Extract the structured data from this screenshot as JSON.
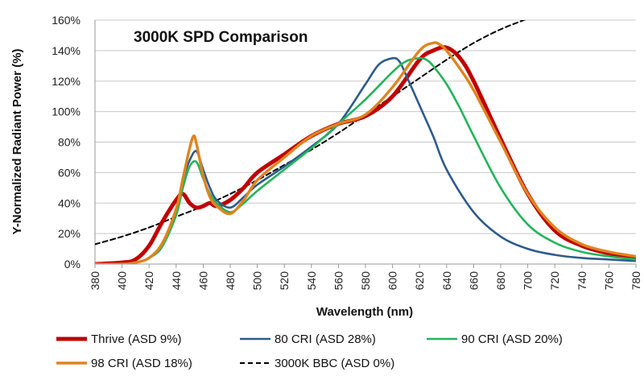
{
  "chart_data": {
    "type": "line",
    "title": "3000K SPD Comparison",
    "xlabel": "Wavelength (nm)",
    "ylabel": "Y-Normalized  Radiant  Power (%)",
    "xlim": [
      380,
      780
    ],
    "ylim": [
      0,
      160
    ],
    "x_ticks": [
      "380",
      "400",
      "420",
      "440",
      "460",
      "480",
      "500",
      "520",
      "540",
      "560",
      "580",
      "600",
      "620",
      "640",
      "660",
      "680",
      "700",
      "720",
      "740",
      "760",
      "780"
    ],
    "y_ticks": [
      "0%",
      "20%",
      "40%",
      "60%",
      "80%",
      "100%",
      "120%",
      "140%",
      "160%"
    ],
    "grid": "horizontal",
    "legend_position": "bottom",
    "colors": {
      "thrive": "#c00000",
      "cri80": "#2e5b8a",
      "cri90": "#22b45a",
      "cri98": "#e0841e",
      "bbc": "#000000"
    },
    "series": [
      {
        "name": "Thrive (ASD 9%)",
        "key": "thrive",
        "x": [
          380,
          400,
          410,
          420,
          430,
          440,
          445,
          450,
          455,
          460,
          465,
          470,
          480,
          490,
          500,
          520,
          540,
          560,
          580,
          600,
          620,
          630,
          640,
          650,
          660,
          680,
          700,
          720,
          740,
          760,
          780
        ],
        "y": [
          0,
          1,
          3,
          12,
          28,
          42,
          46,
          40,
          37,
          38,
          40,
          38,
          42,
          50,
          60,
          72,
          84,
          92,
          97,
          110,
          134,
          140,
          142,
          135,
          120,
          82,
          46,
          22,
          12,
          7,
          4
        ]
      },
      {
        "name": "80 CRI  (ASD 28%)",
        "key": "cri80",
        "x": [
          380,
          400,
          410,
          420,
          430,
          440,
          445,
          450,
          455,
          460,
          465,
          470,
          480,
          490,
          500,
          520,
          540,
          560,
          580,
          590,
          600,
          605,
          610,
          620,
          630,
          640,
          660,
          680,
          700,
          720,
          740,
          760,
          780
        ],
        "y": [
          0,
          0,
          1,
          4,
          12,
          35,
          55,
          68,
          74,
          62,
          50,
          42,
          37,
          44,
          52,
          64,
          77,
          92,
          118,
          131,
          135,
          133,
          124,
          104,
          84,
          62,
          34,
          18,
          10,
          6,
          4,
          3,
          2
        ]
      },
      {
        "name": "90 CRI (ASD 20%)",
        "key": "cri90",
        "x": [
          380,
          400,
          410,
          420,
          430,
          440,
          445,
          450,
          455,
          460,
          465,
          470,
          480,
          490,
          500,
          520,
          540,
          560,
          580,
          600,
          610,
          620,
          625,
          630,
          640,
          650,
          660,
          680,
          700,
          720,
          740,
          760,
          780
        ],
        "y": [
          0,
          0,
          1,
          4,
          12,
          32,
          50,
          64,
          67,
          56,
          46,
          40,
          34,
          40,
          48,
          62,
          76,
          92,
          108,
          126,
          133,
          135,
          134,
          130,
          118,
          102,
          84,
          50,
          26,
          14,
          8,
          5,
          3
        ]
      },
      {
        "name": "98 CRI (ASD 18%)",
        "key": "cri98",
        "x": [
          380,
          400,
          410,
          420,
          430,
          440,
          445,
          450,
          453,
          455,
          460,
          465,
          470,
          480,
          490,
          500,
          520,
          540,
          560,
          580,
          600,
          620,
          630,
          635,
          640,
          650,
          660,
          680,
          700,
          720,
          740,
          760,
          780
        ],
        "y": [
          0,
          0,
          1,
          4,
          14,
          36,
          56,
          76,
          84,
          79,
          58,
          44,
          38,
          33,
          42,
          55,
          70,
          84,
          92,
          98,
          116,
          140,
          145,
          144,
          140,
          128,
          114,
          80,
          46,
          24,
          13,
          8,
          5
        ]
      },
      {
        "name": "3000K BBC (ASD 0%)",
        "key": "bbc",
        "dashed": true,
        "x": [
          380,
          400,
          420,
          440,
          460,
          480,
          500,
          520,
          540,
          560,
          580,
          600,
          620,
          640,
          660,
          680,
          700,
          720
        ],
        "y": [
          13,
          18,
          24,
          31,
          38,
          46,
          55,
          65,
          75,
          86,
          98,
          110,
          122,
          134,
          145,
          154,
          161,
          168
        ]
      }
    ]
  }
}
